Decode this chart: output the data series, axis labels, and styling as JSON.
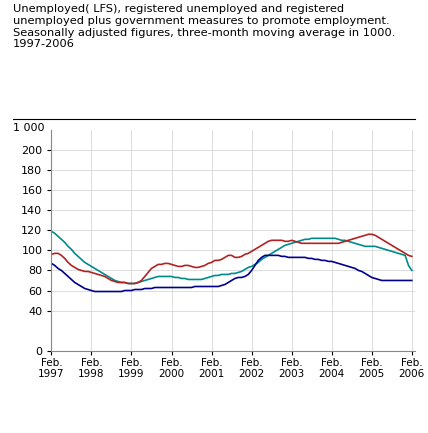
{
  "title_lines": [
    "Unemployed( LFS), registered unemployed and registered",
    "unemployed plus government measures to promote employment.",
    "Seasonally adjusted figures, three-month moving average in 1000.",
    "1997-2006"
  ],
  "ylabel_extra": "1 000",
  "xlim": [
    0,
    109
  ],
  "ylim": [
    0,
    220
  ],
  "yticks": [
    0,
    40,
    60,
    80,
    100,
    120,
    140,
    160,
    180,
    200
  ],
  "xtick_labels": [
    "Feb.\n1997",
    "Feb.\n1998",
    "Feb.\n1999",
    "Feb.\n2000",
    "Feb.\n2001",
    "Feb.\n2002",
    "Feb.\n2003",
    "Feb.\n2004",
    "Feb.\n2005",
    "Feb.\n2006"
  ],
  "xtick_positions": [
    0,
    12,
    24,
    36,
    48,
    60,
    72,
    84,
    96,
    108
  ],
  "lfs_color": "#b22222",
  "reg_color": "#00008b",
  "gov_color": "#008b8b",
  "legend_entries": [
    "Unemployed( LFS)",
    "Registered unemployed",
    "Registered unemployed + government measures"
  ],
  "lfs": [
    96,
    97,
    97,
    95,
    92,
    88,
    85,
    83,
    81,
    80,
    79,
    79,
    78,
    77,
    76,
    75,
    74,
    72,
    70,
    69,
    68,
    68,
    68,
    67,
    67,
    67,
    68,
    70,
    74,
    78,
    82,
    84,
    86,
    86,
    87,
    87,
    86,
    85,
    84,
    84,
    85,
    85,
    84,
    83,
    83,
    84,
    85,
    87,
    88,
    90,
    90,
    91,
    93,
    95,
    95,
    93,
    93,
    94,
    96,
    97,
    99,
    101,
    103,
    105,
    107,
    109,
    110,
    110,
    110,
    110,
    109,
    109,
    110,
    109,
    108,
    107,
    107,
    107,
    107,
    107,
    107,
    107,
    107,
    107,
    107,
    107,
    107,
    108,
    109,
    110,
    111,
    112,
    113,
    114,
    115,
    116,
    116,
    115,
    113,
    111,
    109,
    107,
    105,
    103,
    101,
    99,
    97,
    95,
    94
  ],
  "reg": [
    87,
    85,
    82,
    80,
    77,
    74,
    71,
    68,
    66,
    64,
    62,
    61,
    60,
    59,
    59,
    59,
    59,
    59,
    59,
    59,
    59,
    59,
    60,
    60,
    60,
    61,
    61,
    61,
    62,
    62,
    62,
    63,
    63,
    63,
    63,
    63,
    63,
    63,
    63,
    63,
    63,
    63,
    63,
    64,
    64,
    64,
    64,
    64,
    64,
    64,
    64,
    65,
    66,
    68,
    70,
    72,
    73,
    73,
    74,
    76,
    80,
    85,
    90,
    93,
    95,
    95,
    95,
    95,
    95,
    94,
    94,
    93,
    93,
    93,
    93,
    93,
    93,
    92,
    92,
    91,
    91,
    90,
    90,
    89,
    89,
    88,
    87,
    86,
    85,
    84,
    83,
    82,
    80,
    79,
    77,
    75,
    73,
    72,
    71,
    70,
    70,
    70,
    70,
    70,
    70,
    70,
    70,
    70,
    70
  ],
  "gov": [
    119,
    117,
    114,
    111,
    108,
    104,
    101,
    97,
    94,
    91,
    88,
    86,
    84,
    82,
    80,
    78,
    76,
    74,
    72,
    70,
    69,
    68,
    68,
    67,
    67,
    67,
    68,
    69,
    70,
    71,
    72,
    73,
    74,
    74,
    74,
    74,
    74,
    73,
    73,
    72,
    72,
    71,
    71,
    71,
    71,
    71,
    72,
    73,
    74,
    75,
    75,
    76,
    76,
    76,
    77,
    77,
    78,
    79,
    81,
    83,
    84,
    86,
    88,
    91,
    93,
    95,
    97,
    99,
    101,
    103,
    105,
    106,
    107,
    108,
    109,
    110,
    111,
    111,
    112,
    112,
    112,
    112,
    112,
    112,
    112,
    112,
    111,
    110,
    110,
    109,
    108,
    107,
    106,
    105,
    104,
    104,
    104,
    104,
    103,
    102,
    101,
    100,
    99,
    98,
    97,
    96,
    95,
    85,
    80
  ]
}
